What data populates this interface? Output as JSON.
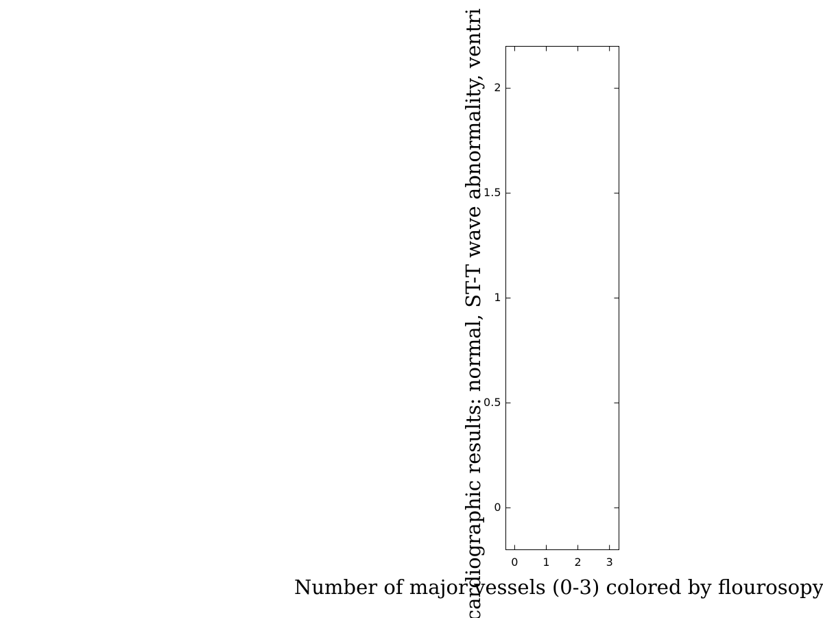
{
  "chart_data": {
    "type": "scatter",
    "x_label": "Number of major vessels (0-3) colored by flourosopy",
    "y_label": "cardiographic results: normal, ST-T wave abnormality, ventri",
    "xlim": [
      -0.28,
      3.3
    ],
    "xticks": [
      0,
      1,
      2,
      3
    ],
    "ylim": [
      -0.2,
      2.2
    ],
    "yticks": [
      0,
      0.5,
      1,
      1.5,
      2
    ],
    "grid": false
  }
}
